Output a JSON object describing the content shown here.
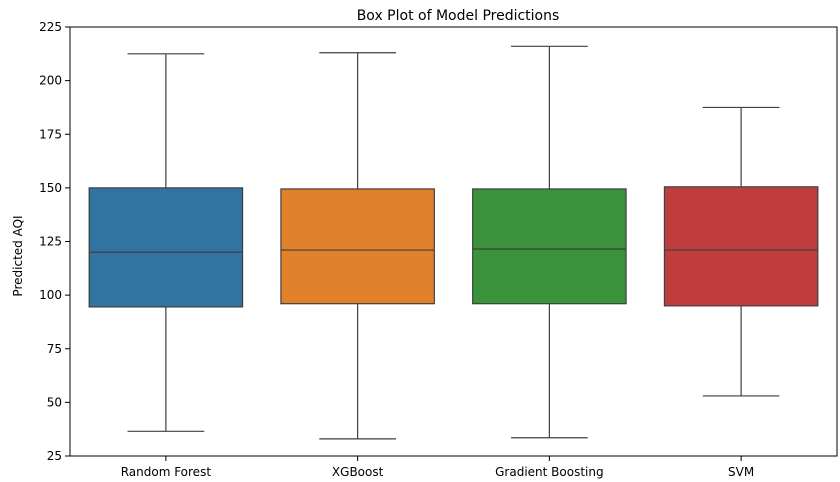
{
  "chart_data": {
    "type": "box",
    "title": "Box Plot of Model Predictions",
    "xlabel": "",
    "ylabel": "Predicted AQI",
    "ylim": [
      25,
      225
    ],
    "yticks": [
      25,
      50,
      75,
      100,
      125,
      150,
      175,
      200,
      225
    ],
    "grid": false,
    "categories": [
      "Random Forest",
      "XGBoost",
      "Gradient Boosting",
      "SVM"
    ],
    "boxes": [
      {
        "whisker_low": 36.5,
        "q1": 94.5,
        "median": 120.0,
        "q3": 150.0,
        "whisker_high": 212.5,
        "color": "#3274a1"
      },
      {
        "whisker_low": 33.0,
        "q1": 96.0,
        "median": 121.0,
        "q3": 149.5,
        "whisker_high": 213.0,
        "color": "#e1812c"
      },
      {
        "whisker_low": 33.5,
        "q1": 96.0,
        "median": 121.5,
        "q3": 149.5,
        "whisker_high": 216.0,
        "color": "#3a923a"
      },
      {
        "whisker_low": 53.0,
        "q1": 95.0,
        "median": 121.0,
        "q3": 150.5,
        "whisker_high": 187.5,
        "color": "#c03d3e"
      }
    ]
  }
}
